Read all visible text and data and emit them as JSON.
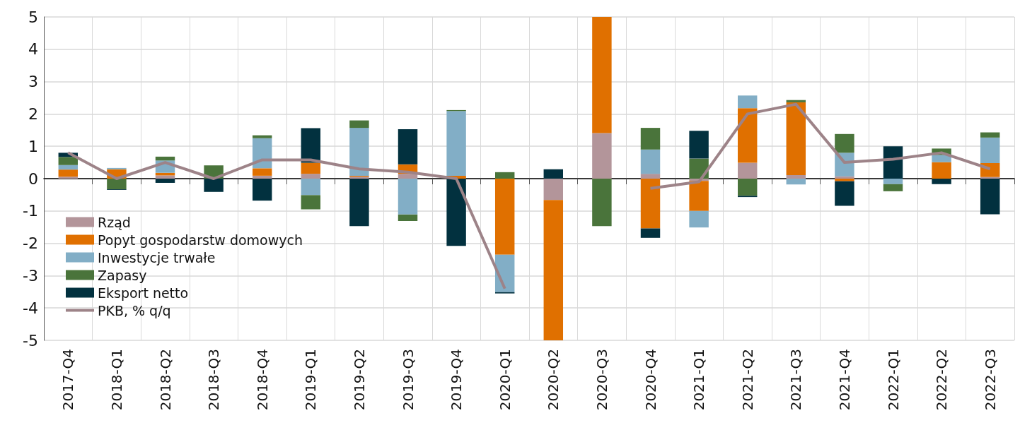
{
  "chart_data": {
    "type": "bar",
    "stacked": true,
    "categories": [
      "2017-Q4",
      "2018-Q1",
      "2018-Q2",
      "2018-Q3",
      "2018-Q4",
      "2019-Q1",
      "2019-Q2",
      "2019-Q3",
      "2019-Q4",
      "2020-Q1",
      "2020-Q2",
      "2020-Q3",
      "2020-Q4",
      "2021-Q1",
      "2021-Q2",
      "2021-Q3",
      "2021-Q4",
      "2022-Q1",
      "2022-Q2",
      "2022-Q3"
    ],
    "series": [
      {
        "name": "Rząd",
        "color": "#b3959a",
        "values": [
          0.06,
          0,
          0.1,
          0,
          0.09,
          0.15,
          0.06,
          0.15,
          0,
          0,
          -0.66,
          1.41,
          0.15,
          -0.07,
          0.49,
          0.11,
          0.07,
          0,
          0,
          0.05
        ]
      },
      {
        "name": "Popyt gospodarstw domowych",
        "color": "#e07000",
        "values": [
          0.22,
          0.29,
          0.08,
          0,
          0.23,
          0.34,
          0.03,
          0.29,
          0.09,
          -2.35,
          -4.34,
          3.59,
          -1.54,
          -0.93,
          1.69,
          2.25,
          -0.08,
          0,
          0.51,
          0.43
        ]
      },
      {
        "name": "Inwestycje trwałe",
        "color": "#82aec6",
        "values": [
          0.14,
          0.04,
          0.38,
          0,
          0.93,
          -0.51,
          1.48,
          -1.11,
          2.0,
          -1.16,
          0,
          0,
          0.75,
          -0.51,
          0.39,
          -0.18,
          0.73,
          -0.17,
          0.22,
          0.79
        ]
      },
      {
        "name": "Zapasy",
        "color": "#4a743b",
        "values": [
          0.25,
          -0.33,
          0.12,
          0.41,
          0.09,
          -0.44,
          0.23,
          -0.2,
          0.03,
          0.2,
          0,
          -1.47,
          0.67,
          0.62,
          -0.53,
          0.07,
          0.58,
          -0.22,
          0.2,
          0.16
        ]
      },
      {
        "name": "Eksport netto",
        "color": "#02313f",
        "values": [
          0.13,
          -0.02,
          -0.13,
          -0.41,
          -0.68,
          1.07,
          -1.47,
          1.09,
          -2.08,
          -0.04,
          0.29,
          0,
          -0.29,
          0.86,
          -0.04,
          0,
          -0.76,
          1.0,
          -0.17,
          -1.1
        ]
      },
      {
        "name": "PKB, % q/q",
        "type": "line",
        "color": "#9d8388",
        "marker": "none",
        "values": [
          0.8,
          0.0,
          0.5,
          0.0,
          0.58,
          0.58,
          0.3,
          0.2,
          0.0,
          -3.4,
          null,
          null,
          -0.3,
          -0.1,
          2.0,
          2.3,
          0.5,
          0.6,
          0.8,
          0.3
        ]
      }
    ],
    "ylim": [
      -5,
      5
    ],
    "yticks": [
      -5,
      -4,
      -3,
      -2,
      -1,
      0,
      1,
      2,
      3,
      4,
      5
    ],
    "grid": true,
    "legend": "bottom left"
  }
}
